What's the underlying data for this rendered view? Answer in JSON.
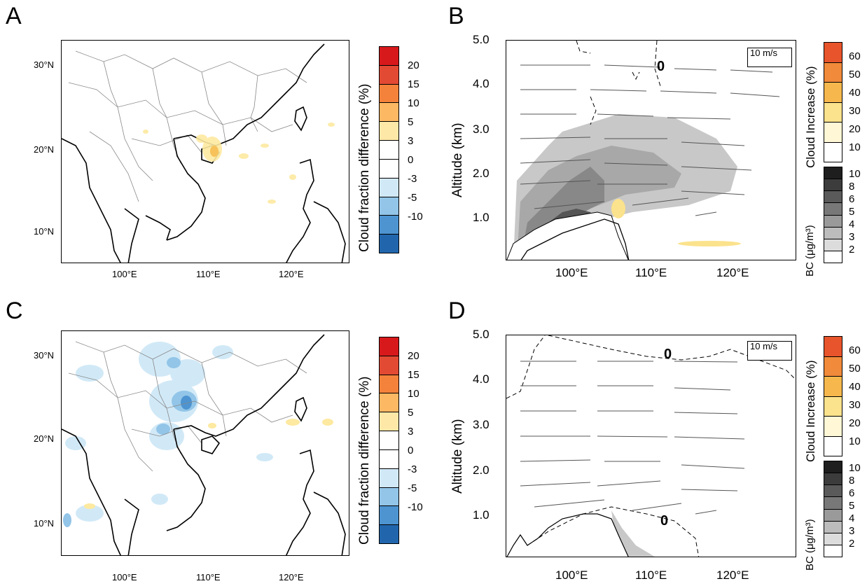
{
  "panels": {
    "A": {
      "letter": "A",
      "cbar_label": "Cloud fraction difference (%)",
      "cbar_ticks": [
        "20",
        "15",
        "10",
        "5",
        "3",
        "0",
        "-3",
        "-5",
        "-10"
      ],
      "lat_ticks": [
        "30°N",
        "20°N",
        "10°N"
      ],
      "lon_ticks": [
        "100°E",
        "110°E",
        "120°E"
      ]
    },
    "B": {
      "letter": "B",
      "ylabel": "Altitude (km)",
      "y_ticks": [
        "5.0",
        "4.0",
        "3.0",
        "2.0",
        "1.0"
      ],
      "x_ticks": [
        "100°E",
        "110°E",
        "120°E"
      ],
      "cloud_label": "Cloud Increase (%)",
      "cloud_ticks": [
        "60",
        "50",
        "40",
        "30",
        "20",
        "10"
      ],
      "bc_label": "BC  (μg/m³)",
      "bc_ticks": [
        "10",
        "8",
        "6",
        "5",
        "4",
        "3",
        "2"
      ],
      "vector_ref": "10 m/s",
      "contour_label": "0"
    },
    "C": {
      "letter": "C",
      "cbar_label": "Cloud fraction difference (%)",
      "cbar_ticks": [
        "20",
        "15",
        "10",
        "5",
        "3",
        "0",
        "-3",
        "-5",
        "-10"
      ],
      "lat_ticks": [
        "30°N",
        "20°N",
        "10°N"
      ],
      "lon_ticks": [
        "100°E",
        "110°E",
        "120°E"
      ]
    },
    "D": {
      "letter": "D",
      "ylabel": "Altitude (km)",
      "y_ticks": [
        "5.0",
        "4.0",
        "3.0",
        "2.0",
        "1.0"
      ],
      "x_ticks": [
        "100°E",
        "110°E",
        "120°E"
      ],
      "cloud_label": "Cloud Increase (%)",
      "cloud_ticks": [
        "60",
        "50",
        "40",
        "30",
        "20",
        "10"
      ],
      "bc_label": "BC  (μg/m³)",
      "bc_ticks": [
        "10",
        "8",
        "6",
        "5",
        "4",
        "3",
        "2"
      ],
      "vector_ref": "10 m/s",
      "contour_label_1": "0",
      "contour_label_2": "0"
    }
  },
  "colors": {
    "diff_scale": [
      "#d7191c",
      "#e34a33",
      "#f4823b",
      "#fdb863",
      "#fee8a8",
      "#ffffff",
      "#ffffff",
      "#d1e9f7",
      "#92c5e8",
      "#4d94d1",
      "#2166ac"
    ],
    "cloud_scale": [
      "#e8542b",
      "#f18a3a",
      "#f6b84d",
      "#fbe28c",
      "#fff7d6",
      "#ffffff"
    ],
    "bc_scale": [
      "#1e1e1e",
      "#3c3c3c",
      "#5a5a5a",
      "#787878",
      "#9a9a9a",
      "#bcbcbc",
      "#dcdcdc",
      "#ffffff"
    ]
  },
  "chart_data": [
    {
      "type": "heatmap",
      "panel": "A",
      "title": "",
      "colorbar_label": "Cloud fraction difference (%)",
      "levels": [
        -10,
        -5,
        -3,
        0,
        3,
        5,
        10,
        15,
        20
      ],
      "xlim": [
        "92°E",
        "128°E"
      ],
      "ylim": [
        "6°N",
        "33°N"
      ],
      "x_ticks": [
        "100°E",
        "110°E",
        "120°E"
      ],
      "y_ticks": [
        "10°N",
        "20°N",
        "30°N"
      ]
    },
    {
      "type": "area",
      "panel": "B",
      "ylabel": "Altitude (km)",
      "ylim": [
        0,
        5
      ],
      "x_ticks": [
        "100°E",
        "110°E",
        "120°E"
      ],
      "y_ticks": [
        1.0,
        2.0,
        3.0,
        4.0,
        5.0
      ],
      "cloud_levels": [
        10,
        20,
        30,
        40,
        50,
        60
      ],
      "bc_levels": [
        2,
        3,
        4,
        5,
        6,
        8,
        10
      ],
      "vector_reference": "10 m/s"
    },
    {
      "type": "heatmap",
      "panel": "C",
      "title": "",
      "colorbar_label": "Cloud fraction difference (%)",
      "levels": [
        -10,
        -5,
        -3,
        0,
        3,
        5,
        10,
        15,
        20
      ],
      "xlim": [
        "92°E",
        "128°E"
      ],
      "ylim": [
        "6°N",
        "33°N"
      ],
      "x_ticks": [
        "100°E",
        "110°E",
        "120°E"
      ],
      "y_ticks": [
        "10°N",
        "20°N",
        "30°N"
      ]
    },
    {
      "type": "area",
      "panel": "D",
      "ylabel": "Altitude (km)",
      "ylim": [
        0,
        5
      ],
      "x_ticks": [
        "100°E",
        "110°E",
        "120°E"
      ],
      "y_ticks": [
        1.0,
        2.0,
        3.0,
        4.0,
        5.0
      ],
      "cloud_levels": [
        10,
        20,
        30,
        40,
        50,
        60
      ],
      "bc_levels": [
        2,
        3,
        4,
        5,
        6,
        8,
        10
      ],
      "vector_reference": "10 m/s"
    }
  ]
}
